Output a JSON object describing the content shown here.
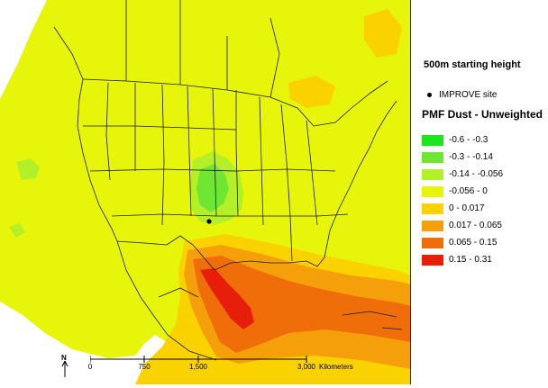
{
  "legend": {
    "height_title": "500m starting height",
    "site_label": "IMPROVE site",
    "layer_title": "PMF Dust - Unweighted",
    "classes": [
      {
        "label": "-0.6 - -0.3",
        "color": "#1ee61e"
      },
      {
        "label": "-0.3 - -0.14",
        "color": "#6ee632"
      },
      {
        "label": "-0.14 - -0.056",
        "color": "#b4f028"
      },
      {
        "label": "-0.056 - 0",
        "color": "#e6f50a"
      },
      {
        "label": "0 - 0.017",
        "color": "#fad200"
      },
      {
        "label": "0.017 - 0.065",
        "color": "#f5a00a"
      },
      {
        "label": "0.065 - 0.15",
        "color": "#f06e0a"
      },
      {
        "label": "0.15 - 0.31",
        "color": "#e61e0a"
      }
    ]
  },
  "scale": {
    "ticks": [
      "0",
      "750",
      "1,500",
      "3,000"
    ],
    "unit": "Kilometers"
  },
  "north_label": "N"
}
